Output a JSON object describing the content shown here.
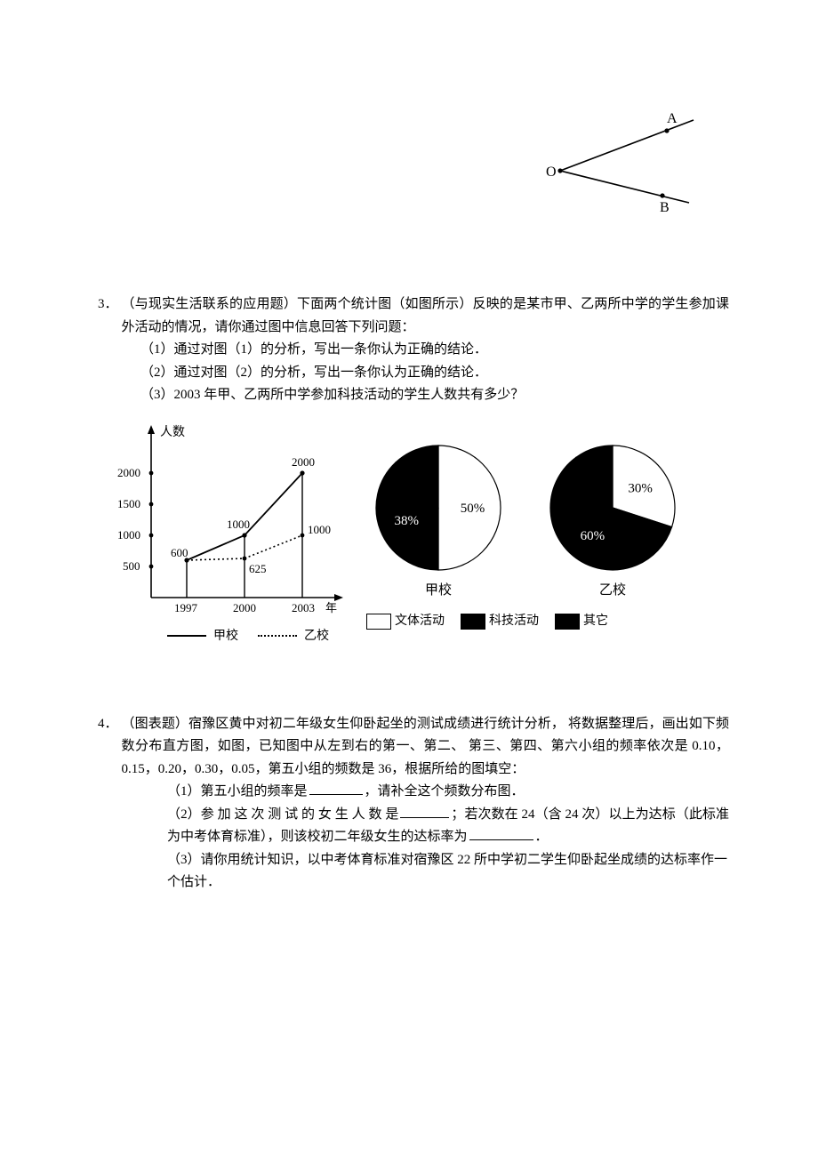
{
  "angle_figure": {
    "origin_label": "O",
    "point_a": "A",
    "point_b": "B",
    "stroke": "#000000"
  },
  "p3": {
    "number": "3．",
    "stem": "（与现实生活联系的应用题）下面两个统计图（如图所示）反映的是某市甲、乙两所中学的学生参加课外活动的情况，请你通过图中信息回答下列问题：",
    "q1": "（1）通过对图（1）的分析，写出一条你认为正确的结论．",
    "q2": "（2）通过对图（2）的分析，写出一条你认为正确的结论．",
    "q3": "（3）2003 年甲、乙两所中学参加科技活动的学生人数共有多少？",
    "linechart": {
      "type": "line",
      "y_axis_label": "人数",
      "x_axis_label": "年",
      "years": [
        "1997",
        "2000",
        "2003"
      ],
      "ytick_values": [
        500,
        1000,
        1500,
        2000
      ],
      "ytick_labels": [
        "500",
        "1000",
        "1500",
        "2000"
      ],
      "series": [
        {
          "name": "甲校",
          "style": "solid",
          "values": [
            600,
            1000,
            2000
          ]
        },
        {
          "name": "乙校",
          "style": "dotted",
          "values": [
            600,
            625,
            1000
          ]
        }
      ],
      "point_labels": {
        "p_600": "600",
        "p_1000a": "1000",
        "p_2000": "2000",
        "p_625": "625",
        "p_1000b": "1000"
      },
      "legend_solid": "甲校",
      "legend_dotted": "乙校",
      "stroke": "#000000"
    },
    "pies": {
      "jia": {
        "caption": "甲校",
        "slices": [
          {
            "name": "文体活动",
            "value": 50,
            "label": "50%",
            "color": "#ffffff",
            "label_color": "#000000"
          },
          {
            "name": "科技活动",
            "value": 38,
            "label": "38%",
            "color": "#000000",
            "label_color": "#ffffff"
          },
          {
            "name": "其它",
            "value": 12,
            "label": "",
            "color": "#000000",
            "label_color": "#ffffff"
          }
        ]
      },
      "yi": {
        "caption": "乙校",
        "slices": [
          {
            "name": "文体活动",
            "value": 30,
            "label": "30%",
            "color": "#ffffff",
            "label_color": "#000000"
          },
          {
            "name": "科技活动",
            "value": 60,
            "label": "60%",
            "color": "#000000",
            "label_color": "#ffffff"
          },
          {
            "name": "其它",
            "value": 10,
            "label": "",
            "color": "#000000",
            "label_color": "#ffffff"
          }
        ]
      },
      "legend": {
        "a": "文体活动",
        "b": "科技活动",
        "c": "其它"
      }
    }
  },
  "p4": {
    "number": "4．",
    "stem": "（图表题）宿豫区黄中对初二年级女生仰卧起坐的测试成绩进行统计分析， 将数据整理后，画出如下频数分布直方图，如图，已知图中从左到右的第一、第二、 第三、第四、第六小组的频率依次是 0.10，0.15，0.20，0.30，0.05，第五小组的频数是 36，根据所给的图填空：",
    "q1_a": "（1）第五小组的频率是",
    "q1_b": "，请补全这个频数分布图．",
    "q2_a": "（2）参 加 这 次 测 试 的 女 生 人 数 是",
    "q2_b": "；若次数在 24（含 24 次）以上为达标（此标准为中考体育标准），则该校初二年级女生的达标率为",
    "q2_c": "．",
    "q3": "（3）请你用统计知识，以中考体育标准对宿豫区 22 所中学初二学生仰卧起坐成绩的达标率作一个估计．"
  }
}
